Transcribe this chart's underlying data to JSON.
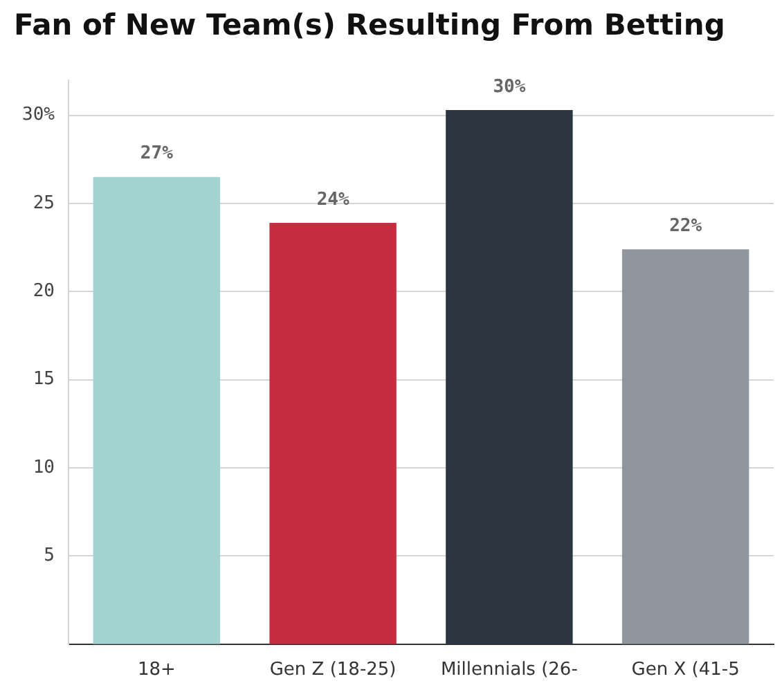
{
  "chart_data": {
    "type": "bar",
    "title": "Fan of New Team(s) Resulting From Betting",
    "categories": [
      "18+",
      "Gen Z (18-25)",
      "Millennials (26-",
      "Gen X (41-5"
    ],
    "values": [
      26.5,
      23.9,
      30.3,
      22.4
    ],
    "colors": [
      "#a3d3d0",
      "#c72c41",
      "#2b3640",
      "#8f969e"
    ],
    "value_labels": [
      "27%",
      "24%",
      "30%",
      "22%"
    ],
    "ylim": [
      0,
      32
    ],
    "yticks": [
      {
        "value": 5,
        "label": "5"
      },
      {
        "value": 10,
        "label": "10"
      },
      {
        "value": 15,
        "label": "15"
      },
      {
        "value": 20,
        "label": "20"
      },
      {
        "value": 25,
        "label": "25"
      },
      {
        "value": 30,
        "label": "30%"
      }
    ],
    "grid": "y",
    "legend": false
  }
}
